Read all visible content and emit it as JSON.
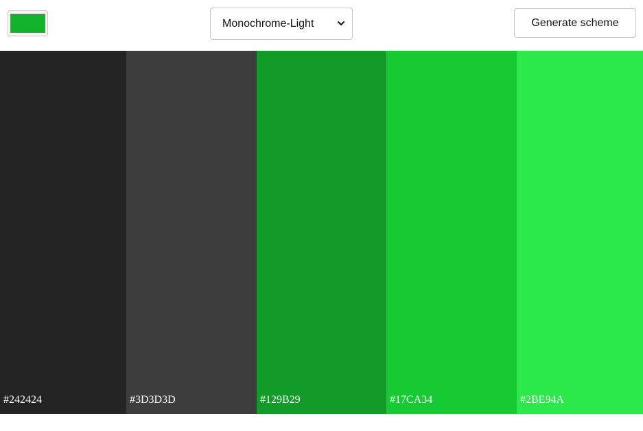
{
  "header": {
    "color_picker": {
      "value": "#13B22B"
    },
    "scheme_select": {
      "selected": "Monochrome-Light"
    },
    "generate_button": {
      "label": "Generate scheme"
    }
  },
  "palette": {
    "colors": [
      {
        "hex": "#242424",
        "label": "#242424"
      },
      {
        "hex": "#3D3D3D",
        "label": "#3D3D3D"
      },
      {
        "hex": "#129B29",
        "label": "#129B29"
      },
      {
        "hex": "#17CA34",
        "label": "#17CA34"
      },
      {
        "hex": "#2BE94A",
        "label": "#2BE94A"
      }
    ]
  }
}
